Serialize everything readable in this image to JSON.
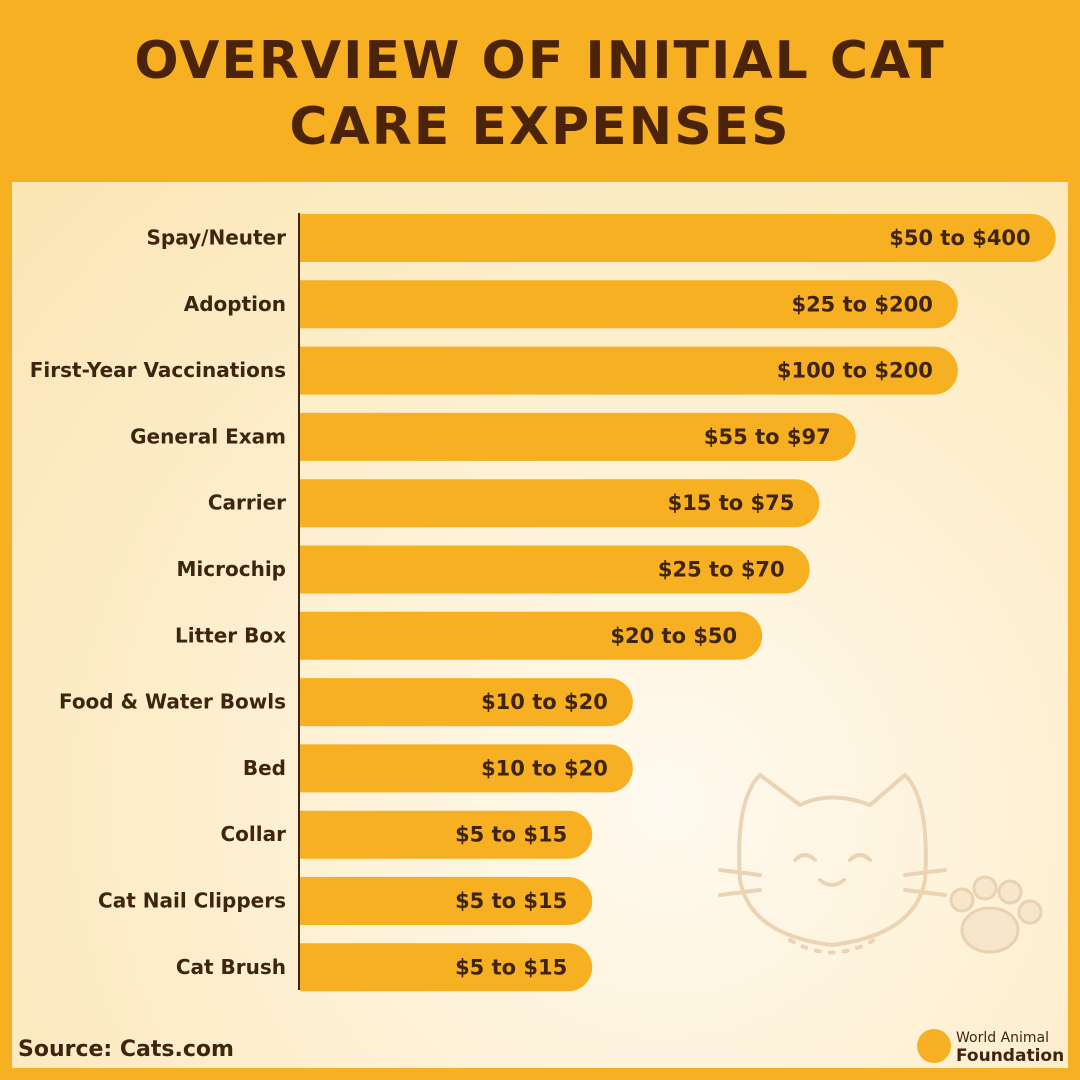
{
  "title": "OVERVIEW OF INITIAL CAT CARE EXPENSES",
  "chart_data": {
    "type": "bar",
    "categories": [
      "Spay/Neuter",
      "Adoption",
      "First-Year Vaccinations",
      "General Exam",
      "Carrier",
      "Microchip",
      "Litter Box",
      "Food & Water Bowls",
      "Bed",
      "Collar",
      "Cat Nail Clippers",
      "Cat Brush"
    ],
    "low": [
      50,
      25,
      100,
      55,
      15,
      25,
      20,
      10,
      10,
      5,
      5,
      5
    ],
    "high": [
      400,
      200,
      200,
      97,
      75,
      70,
      50,
      20,
      20,
      15,
      15,
      15
    ],
    "value_labels": [
      "$50 to $400",
      "$25 to $200",
      "$100 to $200",
      "$55 to $97",
      "$15 to $75",
      "$25 to $70",
      "$20 to $50",
      "$10 to $20",
      "$10 to $20",
      "$5 to $15",
      "$5 to $15",
      "$5 to $15"
    ],
    "color": "#f7b021"
  },
  "source": "Source: Cats.com",
  "logo": {
    "line1": "World Animal",
    "line2": "Foundation"
  }
}
